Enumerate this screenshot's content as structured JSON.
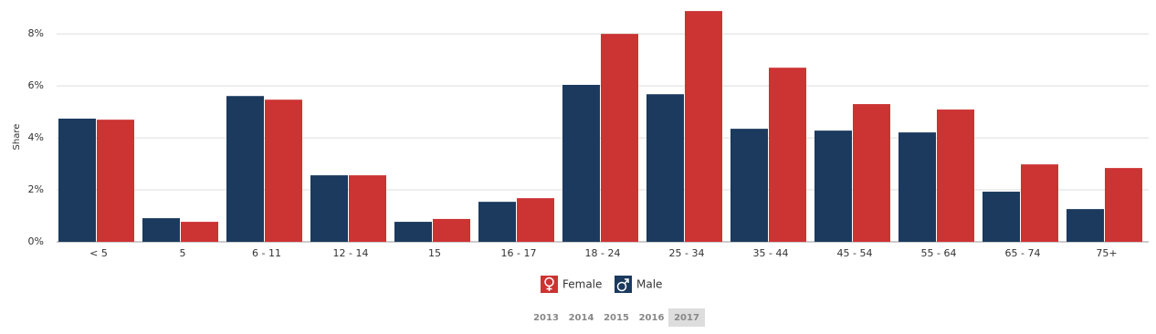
{
  "chart_data": {
    "type": "bar",
    "y_label": "Share",
    "categories": [
      "< 5",
      "5",
      "6 - 11",
      "12 - 14",
      "15",
      "16 - 17",
      "18 - 24",
      "25 - 34",
      "35 - 44",
      "45 - 54",
      "55 - 64",
      "65 - 74",
      "75+"
    ],
    "series": [
      {
        "name": "Male",
        "color": "#1b3a5e",
        "values": [
          4.74,
          0.91,
          5.61,
          2.56,
          0.77,
          1.54,
          6.04,
          5.68,
          4.35,
          4.28,
          4.21,
          1.93,
          1.26
        ]
      },
      {
        "name": "Female",
        "color": "#cc3333",
        "values": [
          4.7,
          0.77,
          5.47,
          2.56,
          0.88,
          1.68,
          8.0,
          8.88,
          6.7,
          5.3,
          5.09,
          2.98,
          2.84
        ]
      }
    ],
    "ylim": [
      0,
      9.2
    ],
    "yticks": [
      {
        "value": 0,
        "label": "0%"
      },
      {
        "value": 2,
        "label": "2%"
      },
      {
        "value": 4,
        "label": "4%"
      },
      {
        "value": 6,
        "label": "6%"
      },
      {
        "value": 8,
        "label": "8%"
      }
    ],
    "grid": true
  },
  "year_selector": {
    "options": [
      "2013",
      "2014",
      "2015",
      "2016",
      "2017"
    ],
    "selected": 4
  }
}
